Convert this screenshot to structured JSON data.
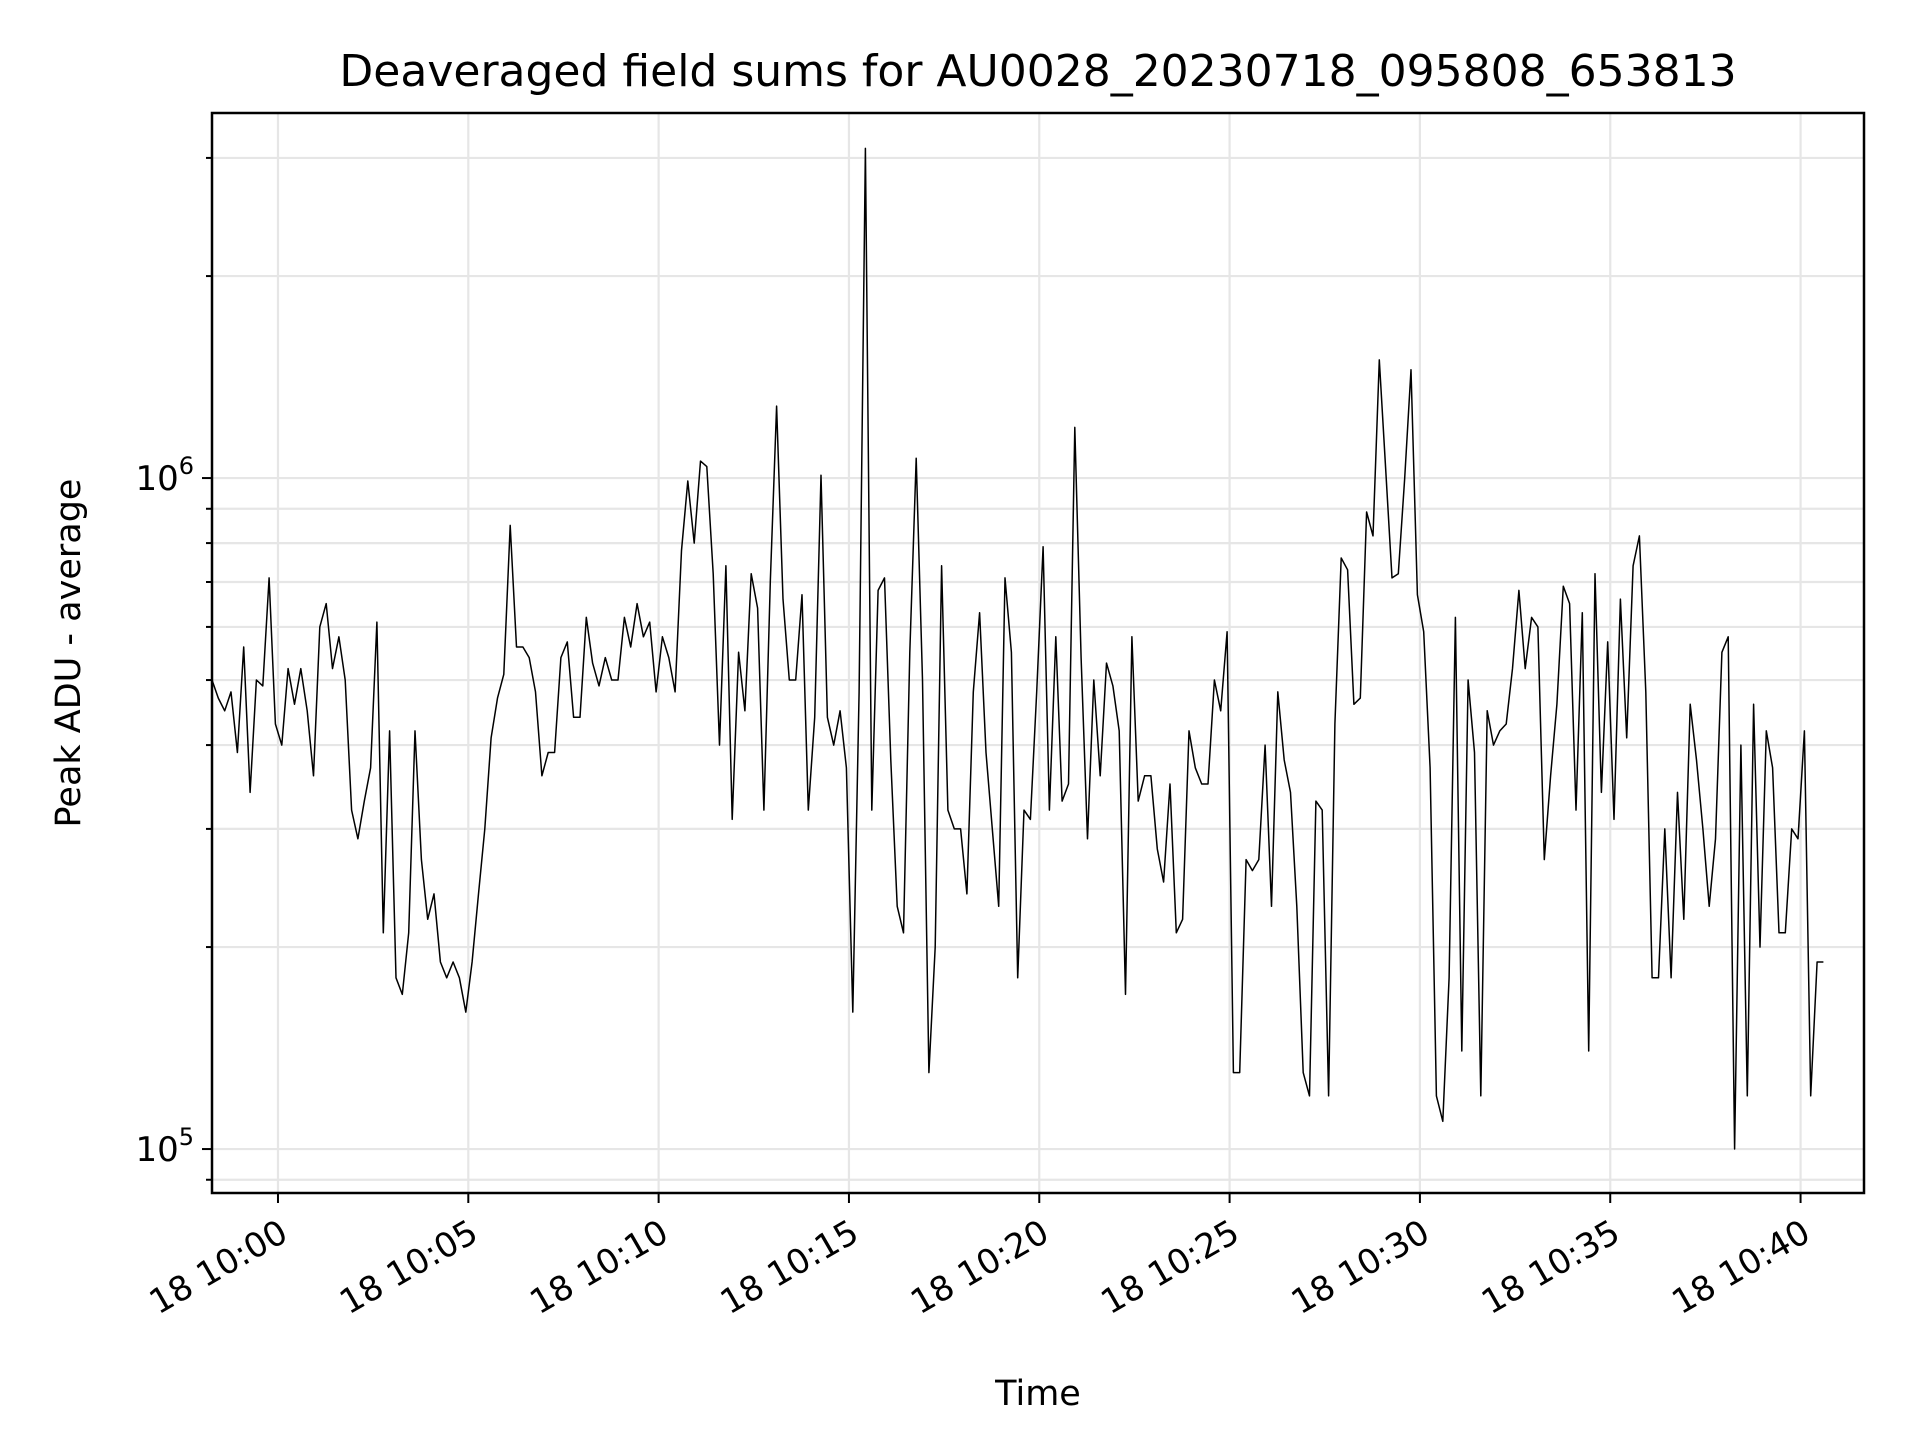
{
  "chart_data": {
    "type": "line",
    "title": "Deaveraged field sums for AU0028_20230718_095808_653813",
    "xlabel": "Time",
    "ylabel": "Peak ADU - average",
    "yscale": "log",
    "grid": true,
    "xlim": [
      "2023-07-18 09:58:16",
      "2023-07-18 10:41:40"
    ],
    "ylim": [
      86000,
      3500000
    ],
    "x_ticks": [
      "18 10:00",
      "18 10:05",
      "18 10:10",
      "18 10:15",
      "18 10:20",
      "18 10:25",
      "18 10:30",
      "18 10:35",
      "18 10:40"
    ],
    "y_ticks": [
      {
        "value": 100000,
        "base": "10",
        "exp": "5"
      },
      {
        "value": 1000000,
        "base": "10",
        "exp": "6"
      }
    ],
    "x_start": "2023-07-18 09:58:16",
    "x_step_seconds": 10,
    "series": [
      {
        "color": "#000000",
        "values": [
          500000,
          470000,
          450000,
          480000,
          390000,
          560000,
          340000,
          500000,
          490000,
          710000,
          430000,
          400000,
          520000,
          460000,
          520000,
          450000,
          360000,
          600000,
          650000,
          520000,
          580000,
          500000,
          320000,
          290000,
          330000,
          370000,
          610000,
          210000,
          420000,
          180000,
          170000,
          210000,
          420000,
          270000,
          220000,
          240000,
          190000,
          180000,
          190000,
          180000,
          160000,
          190000,
          240000,
          300000,
          410000,
          470000,
          510000,
          850000,
          560000,
          560000,
          540000,
          480000,
          360000,
          390000,
          390000,
          540000,
          570000,
          440000,
          440000,
          620000,
          530000,
          490000,
          540000,
          500000,
          500000,
          620000,
          560000,
          650000,
          580000,
          610000,
          480000,
          580000,
          540000,
          480000,
          780000,
          990000,
          800000,
          1060000,
          1040000,
          720000,
          400000,
          740000,
          310000,
          550000,
          450000,
          720000,
          640000,
          320000,
          700000,
          1280000,
          660000,
          500000,
          500000,
          670000,
          320000,
          440000,
          1010000,
          440000,
          400000,
          450000,
          370000,
          160000,
          480000,
          3100000,
          320000,
          680000,
          710000,
          380000,
          230000,
          210000,
          550000,
          1070000,
          500000,
          130000,
          200000,
          740000,
          320000,
          300000,
          300000,
          240000,
          480000,
          630000,
          390000,
          300000,
          230000,
          710000,
          550000,
          180000,
          320000,
          310000,
          480000,
          790000,
          320000,
          580000,
          330000,
          350000,
          1190000,
          540000,
          290000,
          500000,
          360000,
          530000,
          490000,
          420000,
          170000,
          580000,
          330000,
          360000,
          360000,
          280000,
          250000,
          350000,
          210000,
          220000,
          420000,
          370000,
          350000,
          350000,
          500000,
          450000,
          590000,
          130000,
          130000,
          270000,
          260000,
          270000,
          400000,
          230000,
          480000,
          380000,
          340000,
          230000,
          130000,
          120000,
          330000,
          320000,
          120000,
          430000,
          760000,
          730000,
          460000,
          470000,
          890000,
          820000,
          1500000,
          1030000,
          710000,
          720000,
          1000000,
          1450000,
          670000,
          590000,
          370000,
          120000,
          110000,
          180000,
          620000,
          140000,
          500000,
          390000,
          120000,
          450000,
          400000,
          420000,
          430000,
          520000,
          680000,
          520000,
          620000,
          600000,
          270000,
          360000,
          460000,
          690000,
          650000,
          320000,
          630000,
          140000,
          720000,
          340000,
          570000,
          310000,
          660000,
          410000,
          740000,
          820000,
          480000,
          180000,
          180000,
          300000,
          180000,
          340000,
          220000,
          460000,
          380000,
          300000,
          230000,
          290000,
          550000,
          580000,
          100000,
          400000,
          120000,
          460000,
          200000,
          420000,
          370000,
          210000,
          210000,
          300000,
          290000,
          420000,
          120000,
          190000,
          190000
        ]
      }
    ]
  }
}
